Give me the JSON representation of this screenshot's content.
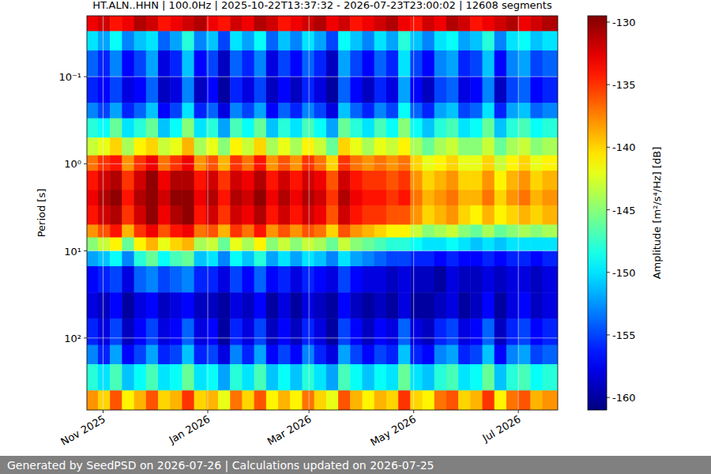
{
  "chart_data": {
    "type": "heatmap",
    "title": "HT.ALN..HHN | 100.0Hz | 2025-10-22T13:37:32 - 2026-07-23T23:00:02 | 12608 segments",
    "ylabel": "Period [s]",
    "footer": "Generated by SeedPSD on 2026-07-26 | Calculations updated on 2026-07-25",
    "log": "y",
    "grid": true,
    "xlim": [
      "2025-10-22T13:37:32",
      "2026-07-23T23:00:02"
    ],
    "xticks": [
      {
        "value": "2025-11-01",
        "label": "Nov 2025"
      },
      {
        "value": "2026-01-01",
        "label": "Jan 2026"
      },
      {
        "value": "2026-03-01",
        "label": "Mar 2026"
      },
      {
        "value": "2026-05-01",
        "label": "May 2026"
      },
      {
        "value": "2026-07-01",
        "label": "Jul 2026"
      }
    ],
    "ylim": [
      0.02,
      671
    ],
    "yticks": [
      {
        "value": 0.1,
        "label": "10⁻¹"
      },
      {
        "value": 1,
        "label": "10⁰"
      },
      {
        "value": 10,
        "label": "10¹"
      },
      {
        "value": 100,
        "label": "10²"
      }
    ],
    "x_edges": [
      "2025-10-22T13:37:32",
      "2025-10-29",
      "2025-11-05",
      "2025-11-12",
      "2025-11-19",
      "2025-11-26",
      "2025-12-03",
      "2025-12-10",
      "2025-12-17",
      "2025-12-24",
      "2025-12-31",
      "2026-01-07",
      "2026-01-14",
      "2026-01-21",
      "2026-01-28",
      "2026-02-04",
      "2026-02-11",
      "2026-02-18",
      "2026-02-25",
      "2026-03-04",
      "2026-03-11",
      "2026-03-18",
      "2026-03-25",
      "2026-04-01",
      "2026-04-08",
      "2026-04-15",
      "2026-04-22",
      "2026-04-29",
      "2026-05-06",
      "2026-05-13",
      "2026-05-20",
      "2026-05-27",
      "2026-06-03",
      "2026-06-10",
      "2026-06-17",
      "2026-06-24",
      "2026-07-01",
      "2026-07-08",
      "2026-07-15",
      "2026-07-23T23:00:02"
    ],
    "y_edges": [
      0.02,
      0.03,
      0.05,
      0.1,
      0.2,
      0.3,
      0.5,
      0.8,
      1.2,
      2,
      3,
      5,
      7,
      10,
      15,
      30,
      60,
      120,
      200,
      400,
      671
    ],
    "values": [
      [
        -133,
        -132,
        -134,
        -133,
        -131,
        -132,
        -134,
        -133,
        -132,
        -131,
        -133,
        -134,
        -132,
        -133,
        -131,
        -132,
        -134,
        -133,
        -132,
        -131,
        -133,
        -132,
        -134,
        -133,
        -132,
        -131,
        -133,
        -134,
        -132,
        -133,
        -131,
        -132,
        -134,
        -133,
        -132,
        -131,
        -133,
        -132,
        -131
      ],
      [
        -150,
        -152,
        -149,
        -153,
        -151,
        -150,
        -154,
        -152,
        -148,
        -153,
        -151,
        -155,
        -150,
        -152,
        -149,
        -154,
        -151,
        -153,
        -150,
        -152,
        -155,
        -149,
        -151,
        -153,
        -150,
        -152,
        -148,
        -151,
        -153,
        -150,
        -149,
        -152,
        -151,
        -148,
        -153,
        -150,
        -149,
        -151,
        -150
      ],
      [
        -154,
        -156,
        -153,
        -157,
        -155,
        -152,
        -158,
        -156,
        -151,
        -157,
        -155,
        -159,
        -154,
        -156,
        -153,
        -158,
        -155,
        -157,
        -154,
        -156,
        -159,
        -152,
        -155,
        -157,
        -154,
        -156,
        -150,
        -155,
        -157,
        -153,
        -152,
        -156,
        -155,
        -151,
        -157,
        -153,
        -152,
        -155,
        -154
      ],
      [
        -156,
        -157,
        -155,
        -158,
        -157,
        -154,
        -159,
        -158,
        -153,
        -159,
        -157,
        -160,
        -156,
        -158,
        -155,
        -159,
        -157,
        -159,
        -156,
        -158,
        -160,
        -154,
        -157,
        -159,
        -156,
        -158,
        -152,
        -157,
        -159,
        -155,
        -154,
        -158,
        -157,
        -153,
        -159,
        -155,
        -154,
        -157,
        -156
      ],
      [
        -153,
        -155,
        -152,
        -156,
        -154,
        -151,
        -157,
        -155,
        -150,
        -156,
        -154,
        -158,
        -153,
        -155,
        -152,
        -157,
        -154,
        -156,
        -153,
        -155,
        -158,
        -151,
        -154,
        -156,
        -153,
        -155,
        -149,
        -154,
        -156,
        -152,
        -151,
        -155,
        -154,
        -150,
        -156,
        -152,
        -151,
        -154,
        -153
      ],
      [
        -148,
        -149,
        -146,
        -150,
        -148,
        -146,
        -151,
        -149,
        -145,
        -150,
        -148,
        -152,
        -147,
        -149,
        -146,
        -151,
        -148,
        -150,
        -147,
        -149,
        -152,
        -146,
        -148,
        -150,
        -147,
        -149,
        -145,
        -149,
        -151,
        -148,
        -147,
        -150,
        -149,
        -146,
        -151,
        -148,
        -147,
        -149,
        -148
      ],
      [
        -143,
        -142,
        -140,
        -144,
        -141,
        -140,
        -143,
        -142,
        -139,
        -144,
        -142,
        -145,
        -141,
        -143,
        -140,
        -144,
        -142,
        -144,
        -141,
        -143,
        -146,
        -140,
        -142,
        -144,
        -142,
        -143,
        -141,
        -144,
        -146,
        -144,
        -143,
        -145,
        -145,
        -143,
        -146,
        -144,
        -143,
        -145,
        -144
      ],
      [
        -137,
        -135,
        -134,
        -138,
        -135,
        -133,
        -137,
        -135,
        -133,
        -138,
        -136,
        -139,
        -135,
        -137,
        -134,
        -138,
        -136,
        -138,
        -135,
        -137,
        -140,
        -135,
        -137,
        -138,
        -137,
        -138,
        -137,
        -140,
        -142,
        -141,
        -140,
        -142,
        -142,
        -140,
        -143,
        -141,
        -140,
        -142,
        -141
      ],
      [
        -134,
        -132,
        -131,
        -135,
        -132,
        -130,
        -133,
        -131,
        -131,
        -134,
        -132,
        -135,
        -132,
        -133,
        -131,
        -134,
        -132,
        -134,
        -132,
        -133,
        -136,
        -132,
        -134,
        -135,
        -135,
        -136,
        -135,
        -138,
        -140,
        -139,
        -138,
        -140,
        -140,
        -138,
        -141,
        -139,
        -138,
        -140,
        -139
      ],
      [
        -133,
        -131,
        -130,
        -134,
        -131,
        -130,
        -132,
        -130,
        -130,
        -133,
        -131,
        -134,
        -131,
        -132,
        -130,
        -133,
        -131,
        -133,
        -131,
        -132,
        -135,
        -131,
        -133,
        -134,
        -134,
        -135,
        -134,
        -137,
        -139,
        -138,
        -137,
        -139,
        -139,
        -137,
        -140,
        -138,
        -137,
        -139,
        -138
      ],
      [
        -134,
        -132,
        -131,
        -135,
        -132,
        -130,
        -133,
        -131,
        -130,
        -134,
        -132,
        -135,
        -132,
        -133,
        -131,
        -134,
        -132,
        -134,
        -132,
        -133,
        -136,
        -132,
        -134,
        -135,
        -135,
        -136,
        -136,
        -138,
        -140,
        -139,
        -138,
        -140,
        -141,
        -139,
        -141,
        -140,
        -139,
        -140,
        -139
      ],
      [
        -138,
        -136,
        -134,
        -139,
        -135,
        -133,
        -136,
        -134,
        -133,
        -137,
        -136,
        -139,
        -135,
        -137,
        -134,
        -138,
        -136,
        -138,
        -136,
        -137,
        -140,
        -136,
        -138,
        -139,
        -140,
        -141,
        -141,
        -143,
        -145,
        -144,
        -143,
        -145,
        -146,
        -144,
        -146,
        -145,
        -144,
        -145,
        -144
      ],
      [
        -145,
        -143,
        -141,
        -146,
        -141,
        -139,
        -142,
        -140,
        -139,
        -144,
        -143,
        -146,
        -142,
        -144,
        -141,
        -145,
        -143,
        -145,
        -143,
        -144,
        -146,
        -143,
        -145,
        -146,
        -147,
        -148,
        -148,
        -149,
        -150,
        -150,
        -149,
        -150,
        -151,
        -150,
        -151,
        -150,
        -150,
        -150,
        -150
      ],
      [
        -152,
        -151,
        -149,
        -153,
        -148,
        -146,
        -149,
        -147,
        -146,
        -151,
        -150,
        -153,
        -149,
        -151,
        -148,
        -152,
        -150,
        -152,
        -150,
        -151,
        -153,
        -150,
        -152,
        -153,
        -154,
        -155,
        -155,
        -156,
        -156,
        -157,
        -156,
        -157,
        -157,
        -156,
        -157,
        -156,
        -156,
        -157,
        -156
      ],
      [
        -157,
        -156,
        -155,
        -158,
        -154,
        -153,
        -155,
        -154,
        -153,
        -156,
        -156,
        -158,
        -155,
        -157,
        -154,
        -157,
        -156,
        -158,
        -156,
        -157,
        -158,
        -155,
        -157,
        -158,
        -158,
        -159,
        -158,
        -159,
        -159,
        -160,
        -158,
        -159,
        -159,
        -158,
        -159,
        -158,
        -158,
        -159,
        -158
      ],
      [
        -158,
        -159,
        -157,
        -160,
        -158,
        -157,
        -159,
        -158,
        -157,
        -159,
        -159,
        -160,
        -158,
        -159,
        -157,
        -160,
        -158,
        -160,
        -158,
        -159,
        -160,
        -157,
        -159,
        -160,
        -159,
        -160,
        -158,
        -160,
        -160,
        -159,
        -158,
        -160,
        -159,
        -157,
        -160,
        -158,
        -157,
        -159,
        -158
      ],
      [
        -156,
        -158,
        -155,
        -159,
        -157,
        -155,
        -158,
        -157,
        -154,
        -158,
        -157,
        -160,
        -156,
        -158,
        -155,
        -159,
        -157,
        -159,
        -156,
        -158,
        -160,
        -155,
        -157,
        -159,
        -157,
        -158,
        -154,
        -158,
        -159,
        -156,
        -155,
        -158,
        -157,
        -154,
        -159,
        -156,
        -155,
        -157,
        -156
      ],
      [
        -153,
        -156,
        -152,
        -157,
        -155,
        -152,
        -156,
        -155,
        -151,
        -156,
        -155,
        -158,
        -153,
        -156,
        -152,
        -157,
        -155,
        -157,
        -153,
        -156,
        -158,
        -152,
        -155,
        -157,
        -155,
        -156,
        -151,
        -156,
        -157,
        -153,
        -152,
        -156,
        -155,
        -151,
        -157,
        -153,
        -152,
        -155,
        -154
      ],
      [
        -148,
        -150,
        -147,
        -151,
        -149,
        -147,
        -150,
        -149,
        -146,
        -150,
        -149,
        -152,
        -148,
        -150,
        -147,
        -151,
        -149,
        -151,
        -148,
        -150,
        -152,
        -147,
        -149,
        -151,
        -149,
        -150,
        -146,
        -150,
        -151,
        -148,
        -147,
        -150,
        -149,
        -146,
        -151,
        -148,
        -147,
        -149,
        -148
      ],
      [
        -138,
        -140,
        -136,
        -141,
        -139,
        -136,
        -140,
        -139,
        -135,
        -140,
        -139,
        -142,
        -137,
        -140,
        -136,
        -141,
        -139,
        -141,
        -137,
        -140,
        -142,
        -136,
        -139,
        -141,
        -139,
        -140,
        -135,
        -140,
        -141,
        -137,
        -136,
        -140,
        -139,
        -135,
        -141,
        -137,
        -136,
        -139,
        -138
      ]
    ],
    "colorbar": {
      "label": "Amplitude [m²/s⁴/Hz] [dB]",
      "range": [
        -161,
        -129.5
      ],
      "ticks": [
        -160,
        -155,
        -150,
        -145,
        -140,
        -135,
        -130
      ]
    }
  }
}
